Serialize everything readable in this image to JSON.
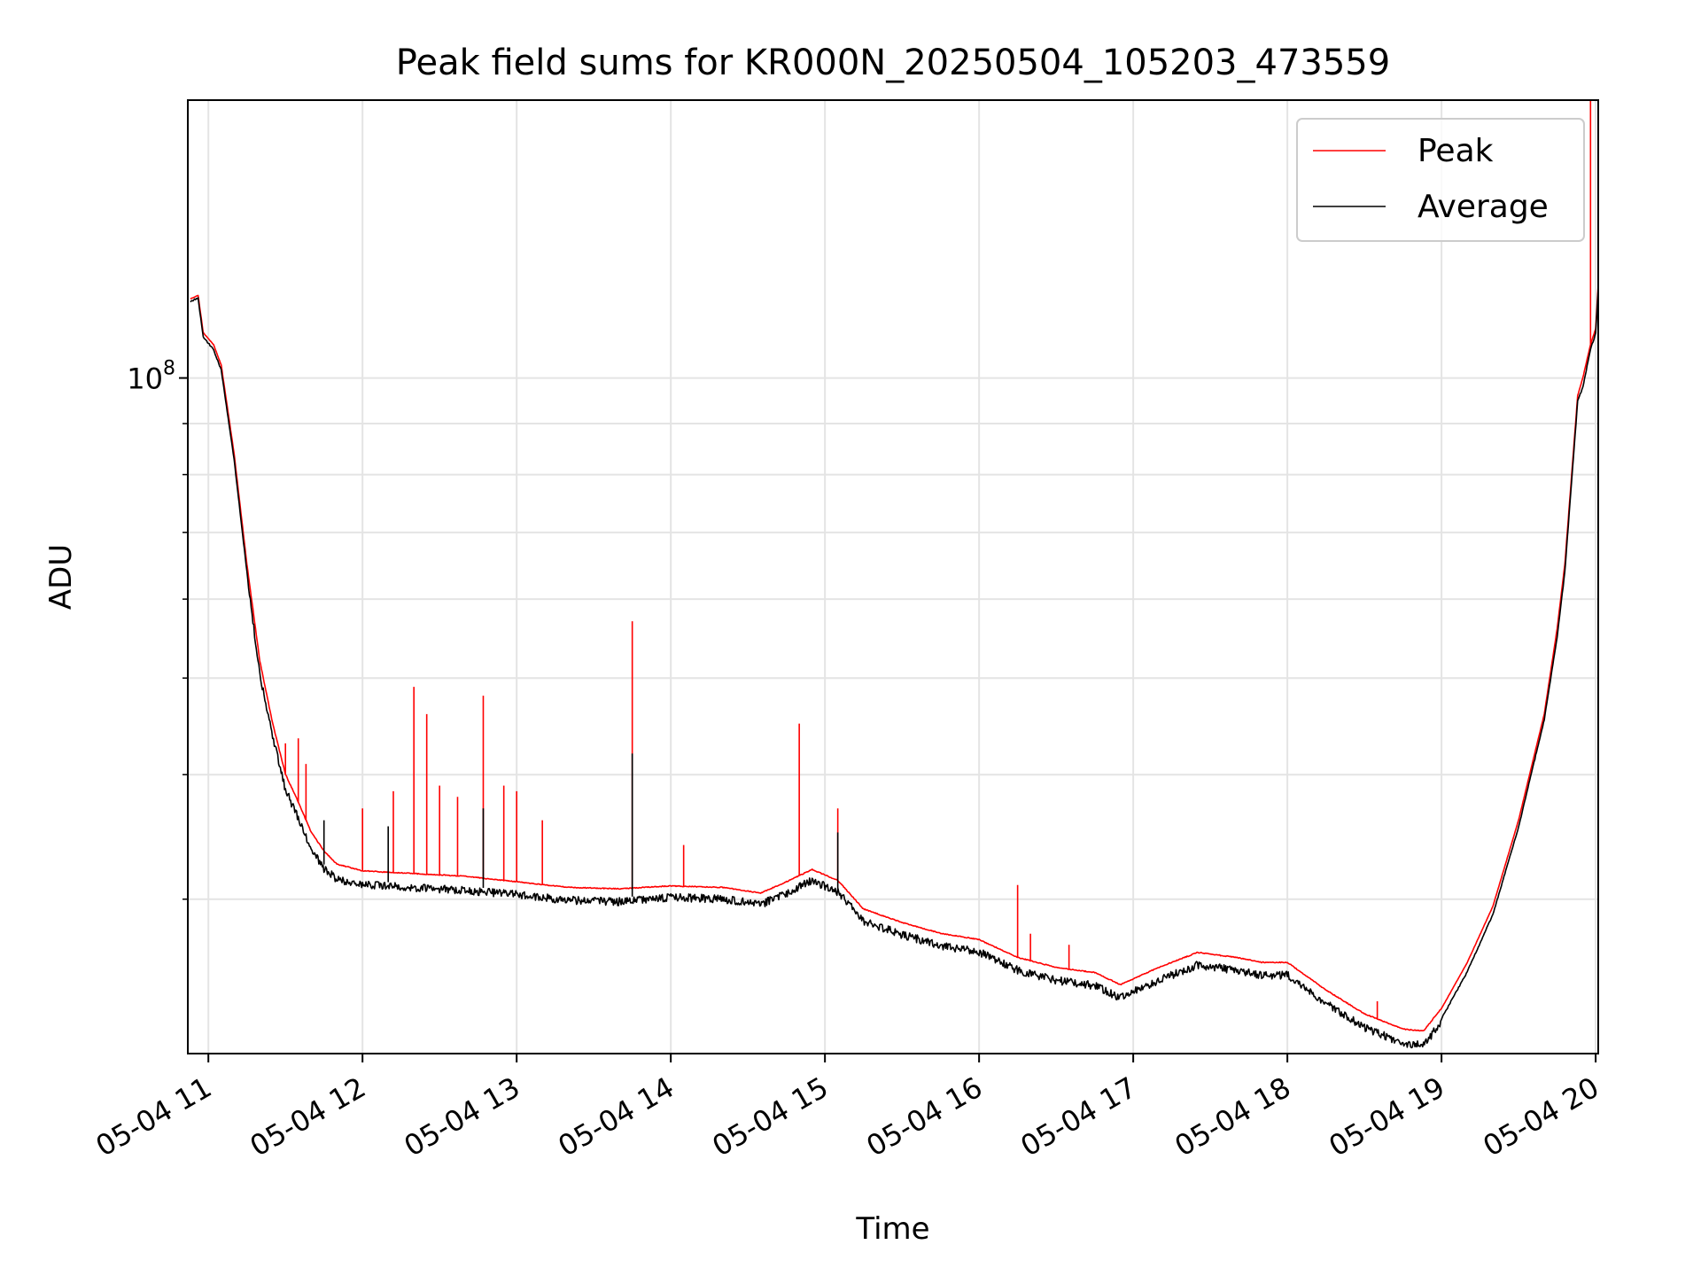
{
  "chart_data": {
    "type": "line",
    "title": "Peak field sums for KR000N_20250504_105203_473559",
    "xlabel": "Time",
    "ylabel": "ADU",
    "y_scale": "log",
    "ylim": [
      21000000,
      190000000
    ],
    "xlim": [
      "2025-05-04 10:52",
      "2025-05-04 20:01"
    ],
    "grid": true,
    "legend_position": "top-right",
    "x_ticks": [
      {
        "time": "2025-05-04 11:00",
        "label": "05-04 11"
      },
      {
        "time": "2025-05-04 12:00",
        "label": "05-04 12"
      },
      {
        "time": "2025-05-04 13:00",
        "label": "05-04 13"
      },
      {
        "time": "2025-05-04 14:00",
        "label": "05-04 14"
      },
      {
        "time": "2025-05-04 15:00",
        "label": "05-04 15"
      },
      {
        "time": "2025-05-04 16:00",
        "label": "05-04 16"
      },
      {
        "time": "2025-05-04 17:00",
        "label": "05-04 17"
      },
      {
        "time": "2025-05-04 18:00",
        "label": "05-04 18"
      },
      {
        "time": "2025-05-04 19:00",
        "label": "05-04 19"
      },
      {
        "time": "2025-05-04 20:00",
        "label": "05-04 20"
      }
    ],
    "y_major_ticks": [
      {
        "value": 100000000,
        "label_base": "10",
        "label_exp": "8"
      }
    ],
    "y_minor_ticks": [
      30000000,
      40000000,
      50000000,
      60000000,
      70000000,
      80000000,
      90000000
    ],
    "series": [
      {
        "name": "Peak",
        "color": "#ff0000",
        "points": [
          [
            "2025-05-04 10:53",
            120000000
          ],
          [
            "2025-05-04 10:56",
            121000000
          ],
          [
            "2025-05-04 10:58",
            111000000
          ],
          [
            "2025-05-04 11:02",
            108000000
          ],
          [
            "2025-05-04 11:05",
            103000000
          ],
          [
            "2025-05-04 11:10",
            84000000
          ],
          [
            "2025-05-04 11:15",
            65000000
          ],
          [
            "2025-05-04 11:20",
            52000000
          ],
          [
            "2025-05-04 11:25",
            45000000
          ],
          [
            "2025-05-04 11:30",
            40000000
          ],
          [
            "2025-05-04 11:35",
            37500000
          ],
          [
            "2025-05-04 11:40",
            35000000
          ],
          [
            "2025-05-04 11:45",
            33500000
          ],
          [
            "2025-05-04 11:50",
            32500000
          ],
          [
            "2025-05-04 12:00",
            32000000
          ],
          [
            "2025-05-04 12:20",
            31800000
          ],
          [
            "2025-05-04 12:40",
            31600000
          ],
          [
            "2025-05-04 13:00",
            31200000
          ],
          [
            "2025-05-04 13:20",
            30800000
          ],
          [
            "2025-05-04 13:40",
            30700000
          ],
          [
            "2025-05-04 14:00",
            30900000
          ],
          [
            "2025-05-04 14:20",
            30800000
          ],
          [
            "2025-05-04 14:35",
            30400000
          ],
          [
            "2025-05-04 14:45",
            31200000
          ],
          [
            "2025-05-04 14:55",
            32100000
          ],
          [
            "2025-05-04 15:05",
            31300000
          ],
          [
            "2025-05-04 15:15",
            29300000
          ],
          [
            "2025-05-04 15:30",
            28400000
          ],
          [
            "2025-05-04 15:45",
            27700000
          ],
          [
            "2025-05-04 16:00",
            27300000
          ],
          [
            "2025-05-04 16:15",
            26200000
          ],
          [
            "2025-05-04 16:30",
            25600000
          ],
          [
            "2025-05-04 16:45",
            25300000
          ],
          [
            "2025-05-04 16:55",
            24600000
          ],
          [
            "2025-05-04 17:10",
            25600000
          ],
          [
            "2025-05-04 17:25",
            26500000
          ],
          [
            "2025-05-04 17:40",
            26200000
          ],
          [
            "2025-05-04 17:50",
            25900000
          ],
          [
            "2025-05-04 18:00",
            25900000
          ],
          [
            "2025-05-04 18:15",
            24300000
          ],
          [
            "2025-05-04 18:30",
            23000000
          ],
          [
            "2025-05-04 18:45",
            22200000
          ],
          [
            "2025-05-04 18:53",
            22100000
          ],
          [
            "2025-05-04 19:00",
            23300000
          ],
          [
            "2025-05-04 19:10",
            25900000
          ],
          [
            "2025-05-04 19:20",
            29500000
          ],
          [
            "2025-05-04 19:30",
            36000000
          ],
          [
            "2025-05-04 19:40",
            46000000
          ],
          [
            "2025-05-04 19:45",
            56000000
          ],
          [
            "2025-05-04 19:48",
            65000000
          ],
          [
            "2025-05-04 19:53",
            96000000
          ],
          [
            "2025-05-04 19:55",
            100000000
          ],
          [
            "2025-05-04 19:58",
            108000000
          ],
          [
            "2025-05-04 20:00",
            112000000
          ],
          [
            "2025-05-04 20:01",
            124000000
          ]
        ],
        "spikes": [
          [
            "2025-05-04 11:30",
            43000000
          ],
          [
            "2025-05-04 11:35",
            43500000
          ],
          [
            "2025-05-04 11:38",
            41000000
          ],
          [
            "2025-05-04 12:00",
            37000000
          ],
          [
            "2025-05-04 12:12",
            38500000
          ],
          [
            "2025-05-04 12:20",
            49000000
          ],
          [
            "2025-05-04 12:25",
            46000000
          ],
          [
            "2025-05-04 12:30",
            39000000
          ],
          [
            "2025-05-04 12:37",
            38000000
          ],
          [
            "2025-05-04 12:47",
            48000000
          ],
          [
            "2025-05-04 12:55",
            39000000
          ],
          [
            "2025-05-04 13:00",
            38500000
          ],
          [
            "2025-05-04 13:10",
            36000000
          ],
          [
            "2025-05-04 13:45",
            57000000
          ],
          [
            "2025-05-04 14:05",
            34000000
          ],
          [
            "2025-05-04 14:50",
            45000000
          ],
          [
            "2025-05-04 15:05",
            37000000
          ],
          [
            "2025-05-04 16:15",
            31000000
          ],
          [
            "2025-05-04 16:20",
            27700000
          ],
          [
            "2025-05-04 16:35",
            27000000
          ],
          [
            "2025-05-04 18:35",
            23700000
          ],
          [
            "2025-05-04 19:58",
            190000000
          ]
        ]
      },
      {
        "name": "Average",
        "color": "#000000",
        "points": [
          [
            "2025-05-04 10:53",
            119500000
          ],
          [
            "2025-05-04 10:56",
            120500000
          ],
          [
            "2025-05-04 10:58",
            110000000
          ],
          [
            "2025-05-04 11:02",
            107000000
          ],
          [
            "2025-05-04 11:05",
            102000000
          ],
          [
            "2025-05-04 11:10",
            83000000
          ],
          [
            "2025-05-04 11:15",
            64000000
          ],
          [
            "2025-05-04 11:20",
            51000000
          ],
          [
            "2025-05-04 11:25",
            44000000
          ],
          [
            "2025-05-04 11:30",
            39000000
          ],
          [
            "2025-05-04 11:35",
            36500000
          ],
          [
            "2025-05-04 11:40",
            34000000
          ],
          [
            "2025-05-04 11:45",
            32500000
          ],
          [
            "2025-05-04 11:50",
            31700000
          ],
          [
            "2025-05-04 12:00",
            31300000
          ],
          [
            "2025-05-04 12:20",
            31100000
          ],
          [
            "2025-05-04 12:40",
            30900000
          ],
          [
            "2025-05-04 13:00",
            30600000
          ],
          [
            "2025-05-04 13:20",
            30200000
          ],
          [
            "2025-05-04 13:40",
            30100000
          ],
          [
            "2025-05-04 14:00",
            30400000
          ],
          [
            "2025-05-04 14:20",
            30300000
          ],
          [
            "2025-05-04 14:35",
            29900000
          ],
          [
            "2025-05-04 14:45",
            30700000
          ],
          [
            "2025-05-04 14:55",
            31600000
          ],
          [
            "2025-05-04 15:05",
            30800000
          ],
          [
            "2025-05-04 15:15",
            28800000
          ],
          [
            "2025-05-04 15:30",
            27900000
          ],
          [
            "2025-05-04 15:45",
            27200000
          ],
          [
            "2025-05-04 16:00",
            26800000
          ],
          [
            "2025-05-04 16:15",
            25700000
          ],
          [
            "2025-05-04 16:30",
            25100000
          ],
          [
            "2025-05-04 16:45",
            24800000
          ],
          [
            "2025-05-04 16:55",
            24100000
          ],
          [
            "2025-05-04 17:10",
            25100000
          ],
          [
            "2025-05-04 17:25",
            26000000
          ],
          [
            "2025-05-04 17:40",
            25700000
          ],
          [
            "2025-05-04 17:50",
            25400000
          ],
          [
            "2025-05-04 18:00",
            25400000
          ],
          [
            "2025-05-04 18:15",
            23800000
          ],
          [
            "2025-05-04 18:30",
            22500000
          ],
          [
            "2025-05-04 18:45",
            21700000
          ],
          [
            "2025-05-04 18:53",
            21600000
          ],
          [
            "2025-05-04 19:00",
            22800000
          ],
          [
            "2025-05-04 19:10",
            25400000
          ],
          [
            "2025-05-04 19:20",
            29000000
          ],
          [
            "2025-05-04 19:30",
            35500000
          ],
          [
            "2025-05-04 19:40",
            45500000
          ],
          [
            "2025-05-04 19:45",
            55000000
          ],
          [
            "2025-05-04 19:48",
            64000000
          ],
          [
            "2025-05-04 19:53",
            95000000
          ],
          [
            "2025-05-04 19:55",
            98000000
          ],
          [
            "2025-05-04 19:58",
            107000000
          ],
          [
            "2025-05-04 20:00",
            111000000
          ],
          [
            "2025-05-04 20:01",
            123000000
          ]
        ],
        "spikes": [
          [
            "2025-05-04 11:45",
            36000000
          ],
          [
            "2025-05-04 12:10",
            35500000
          ],
          [
            "2025-05-04 12:47",
            37000000
          ],
          [
            "2025-05-04 13:45",
            42000000
          ],
          [
            "2025-05-04 15:05",
            35000000
          ]
        ]
      }
    ]
  }
}
